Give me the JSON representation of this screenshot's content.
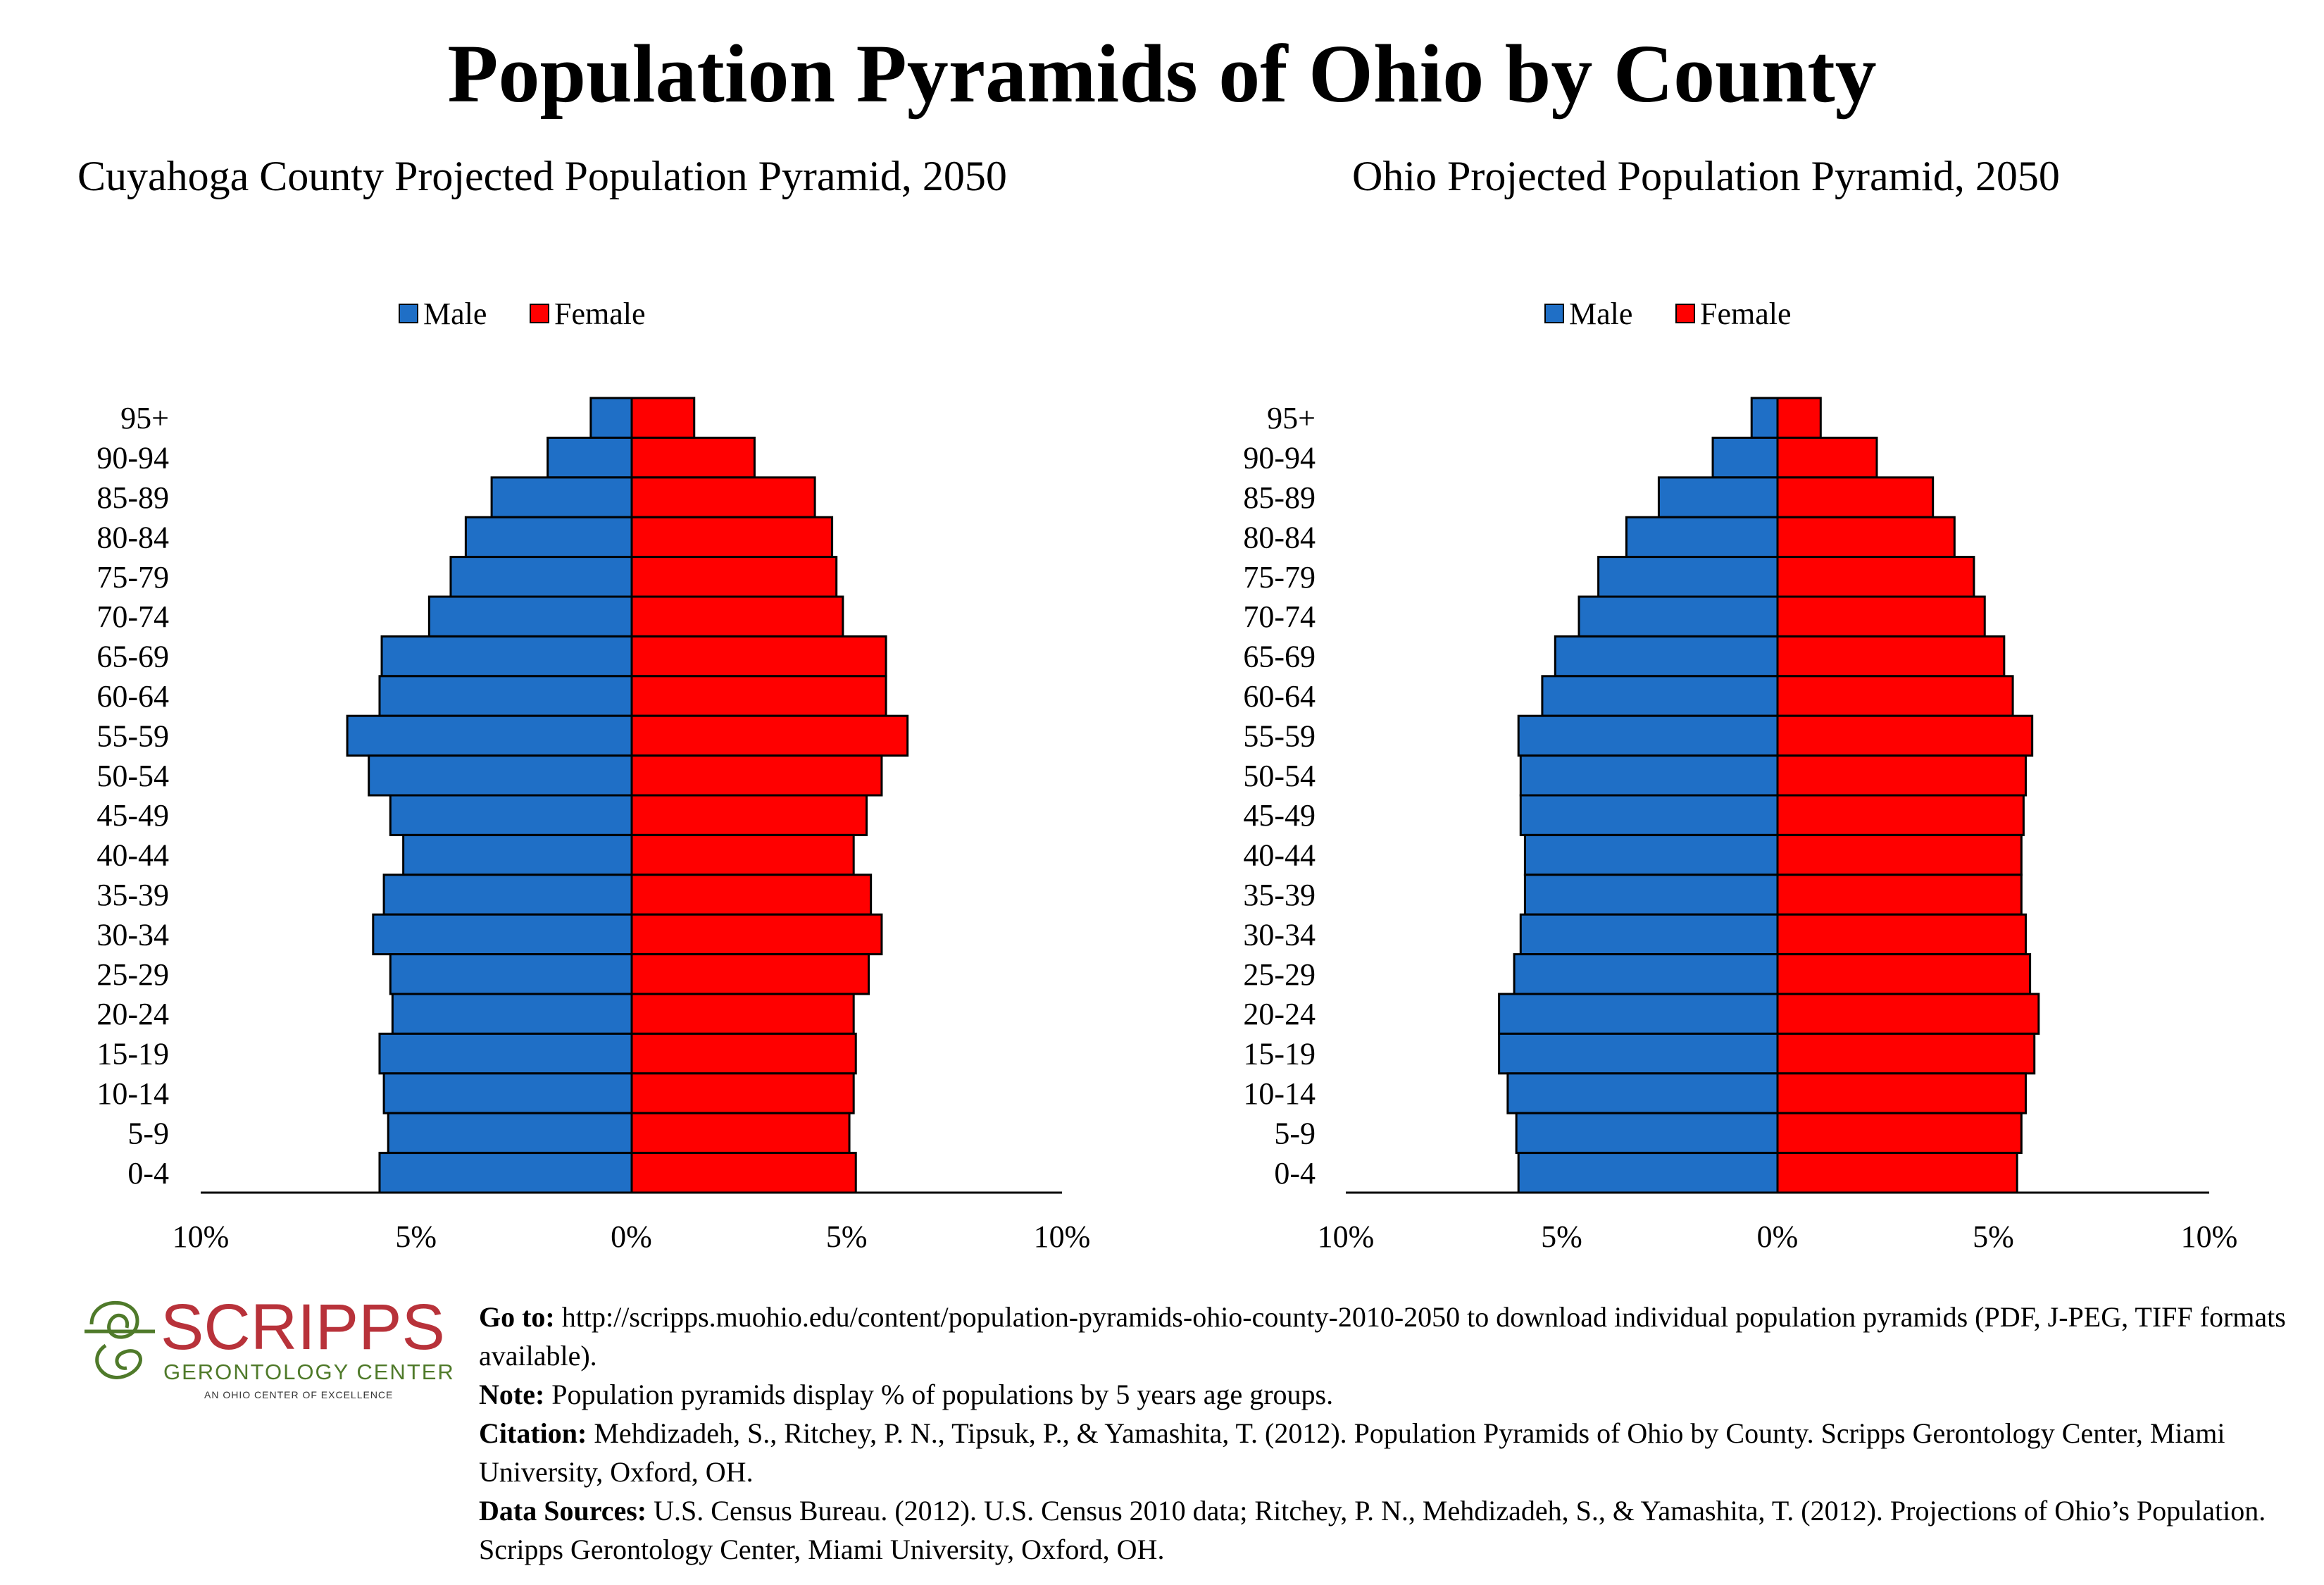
{
  "title": "Population Pyramids of Ohio by County",
  "legend": {
    "male": "Male",
    "female": "Female"
  },
  "colors": {
    "male": "#1f6fc6",
    "female": "#ff0000"
  },
  "chart_data": [
    {
      "type": "bar",
      "title": "Cuyahoga County Projected Population Pyramid, 2050",
      "categories": [
        "95+",
        "90-94",
        "85-89",
        "80-84",
        "75-79",
        "70-74",
        "65-69",
        "60-64",
        "55-59",
        "50-54",
        "45-49",
        "40-44",
        "35-39",
        "30-34",
        "25-29",
        "20-24",
        "15-19",
        "10-14",
        "5-9",
        "0-4"
      ],
      "series": [
        {
          "name": "Male",
          "values": [
            0.95,
            1.95,
            3.25,
            3.85,
            4.2,
            4.7,
            5.8,
            5.85,
            6.6,
            6.1,
            5.6,
            5.3,
            5.75,
            6.0,
            5.6,
            5.55,
            5.85,
            5.75,
            5.65,
            5.85
          ]
        },
        {
          "name": "Female",
          "values": [
            1.45,
            2.85,
            4.25,
            4.65,
            4.75,
            4.9,
            5.9,
            5.9,
            6.4,
            5.8,
            5.45,
            5.15,
            5.55,
            5.8,
            5.5,
            5.15,
            5.2,
            5.15,
            5.05,
            5.2
          ]
        }
      ],
      "x_ticks": [
        "10%",
        "5%",
        "0%",
        "5%",
        "10%"
      ],
      "xlim": [
        -10,
        10
      ],
      "legend_position": "top-center"
    },
    {
      "type": "bar",
      "title": "Ohio Projected Population Pyramid, 2050",
      "categories": [
        "95+",
        "90-94",
        "85-89",
        "80-84",
        "75-79",
        "70-74",
        "65-69",
        "60-64",
        "55-59",
        "50-54",
        "45-49",
        "40-44",
        "35-39",
        "30-34",
        "25-29",
        "20-24",
        "15-19",
        "10-14",
        "5-9",
        "0-4"
      ],
      "series": [
        {
          "name": "Male",
          "values": [
            0.6,
            1.5,
            2.75,
            3.5,
            4.15,
            4.6,
            5.15,
            5.45,
            6.0,
            5.95,
            5.95,
            5.85,
            5.85,
            5.95,
            6.1,
            6.45,
            6.45,
            6.25,
            6.05,
            6.0
          ]
        },
        {
          "name": "Female",
          "values": [
            1.0,
            2.3,
            3.6,
            4.1,
            4.55,
            4.8,
            5.25,
            5.45,
            5.9,
            5.75,
            5.7,
            5.65,
            5.65,
            5.75,
            5.85,
            6.05,
            5.95,
            5.75,
            5.65,
            5.55
          ]
        }
      ],
      "x_ticks": [
        "10%",
        "5%",
        "0%",
        "5%",
        "10%"
      ],
      "xlim": [
        -10,
        10
      ],
      "legend_position": "top-center"
    }
  ],
  "logo": {
    "name": "SCRIPPS",
    "subtitle": "GERONTOLOGY CENTER",
    "tagline": "AN OHIO CENTER OF EXCELLENCE"
  },
  "footer": {
    "goto_label": "Go to:",
    "goto_text": "http://scripps.muohio.edu/content/population-pyramids-ohio-county-2010-2050 to download individual population pyramids (PDF, J-PEG, TIFF formats available).",
    "note_label": "Note:",
    "note_text": "Population pyramids display % of populations by 5 years age groups.",
    "citation_label": "Citation:",
    "citation_text": "Mehdizadeh, S., Ritchey, P. N., Tipsuk, P., & Yamashita, T. (2012). Population Pyramids of Ohio by County. Scripps Gerontology Center, Miami University, Oxford, OH.",
    "sources_label": "Data Sources:",
    "sources_text": "U.S. Census Bureau. (2012). U.S. Census 2010 data; Ritchey, P. N., Mehdizadeh, S., & Yamashita, T. (2012). Projections of Ohio’s Population. Scripps Gerontology Center, Miami University, Oxford, OH."
  }
}
